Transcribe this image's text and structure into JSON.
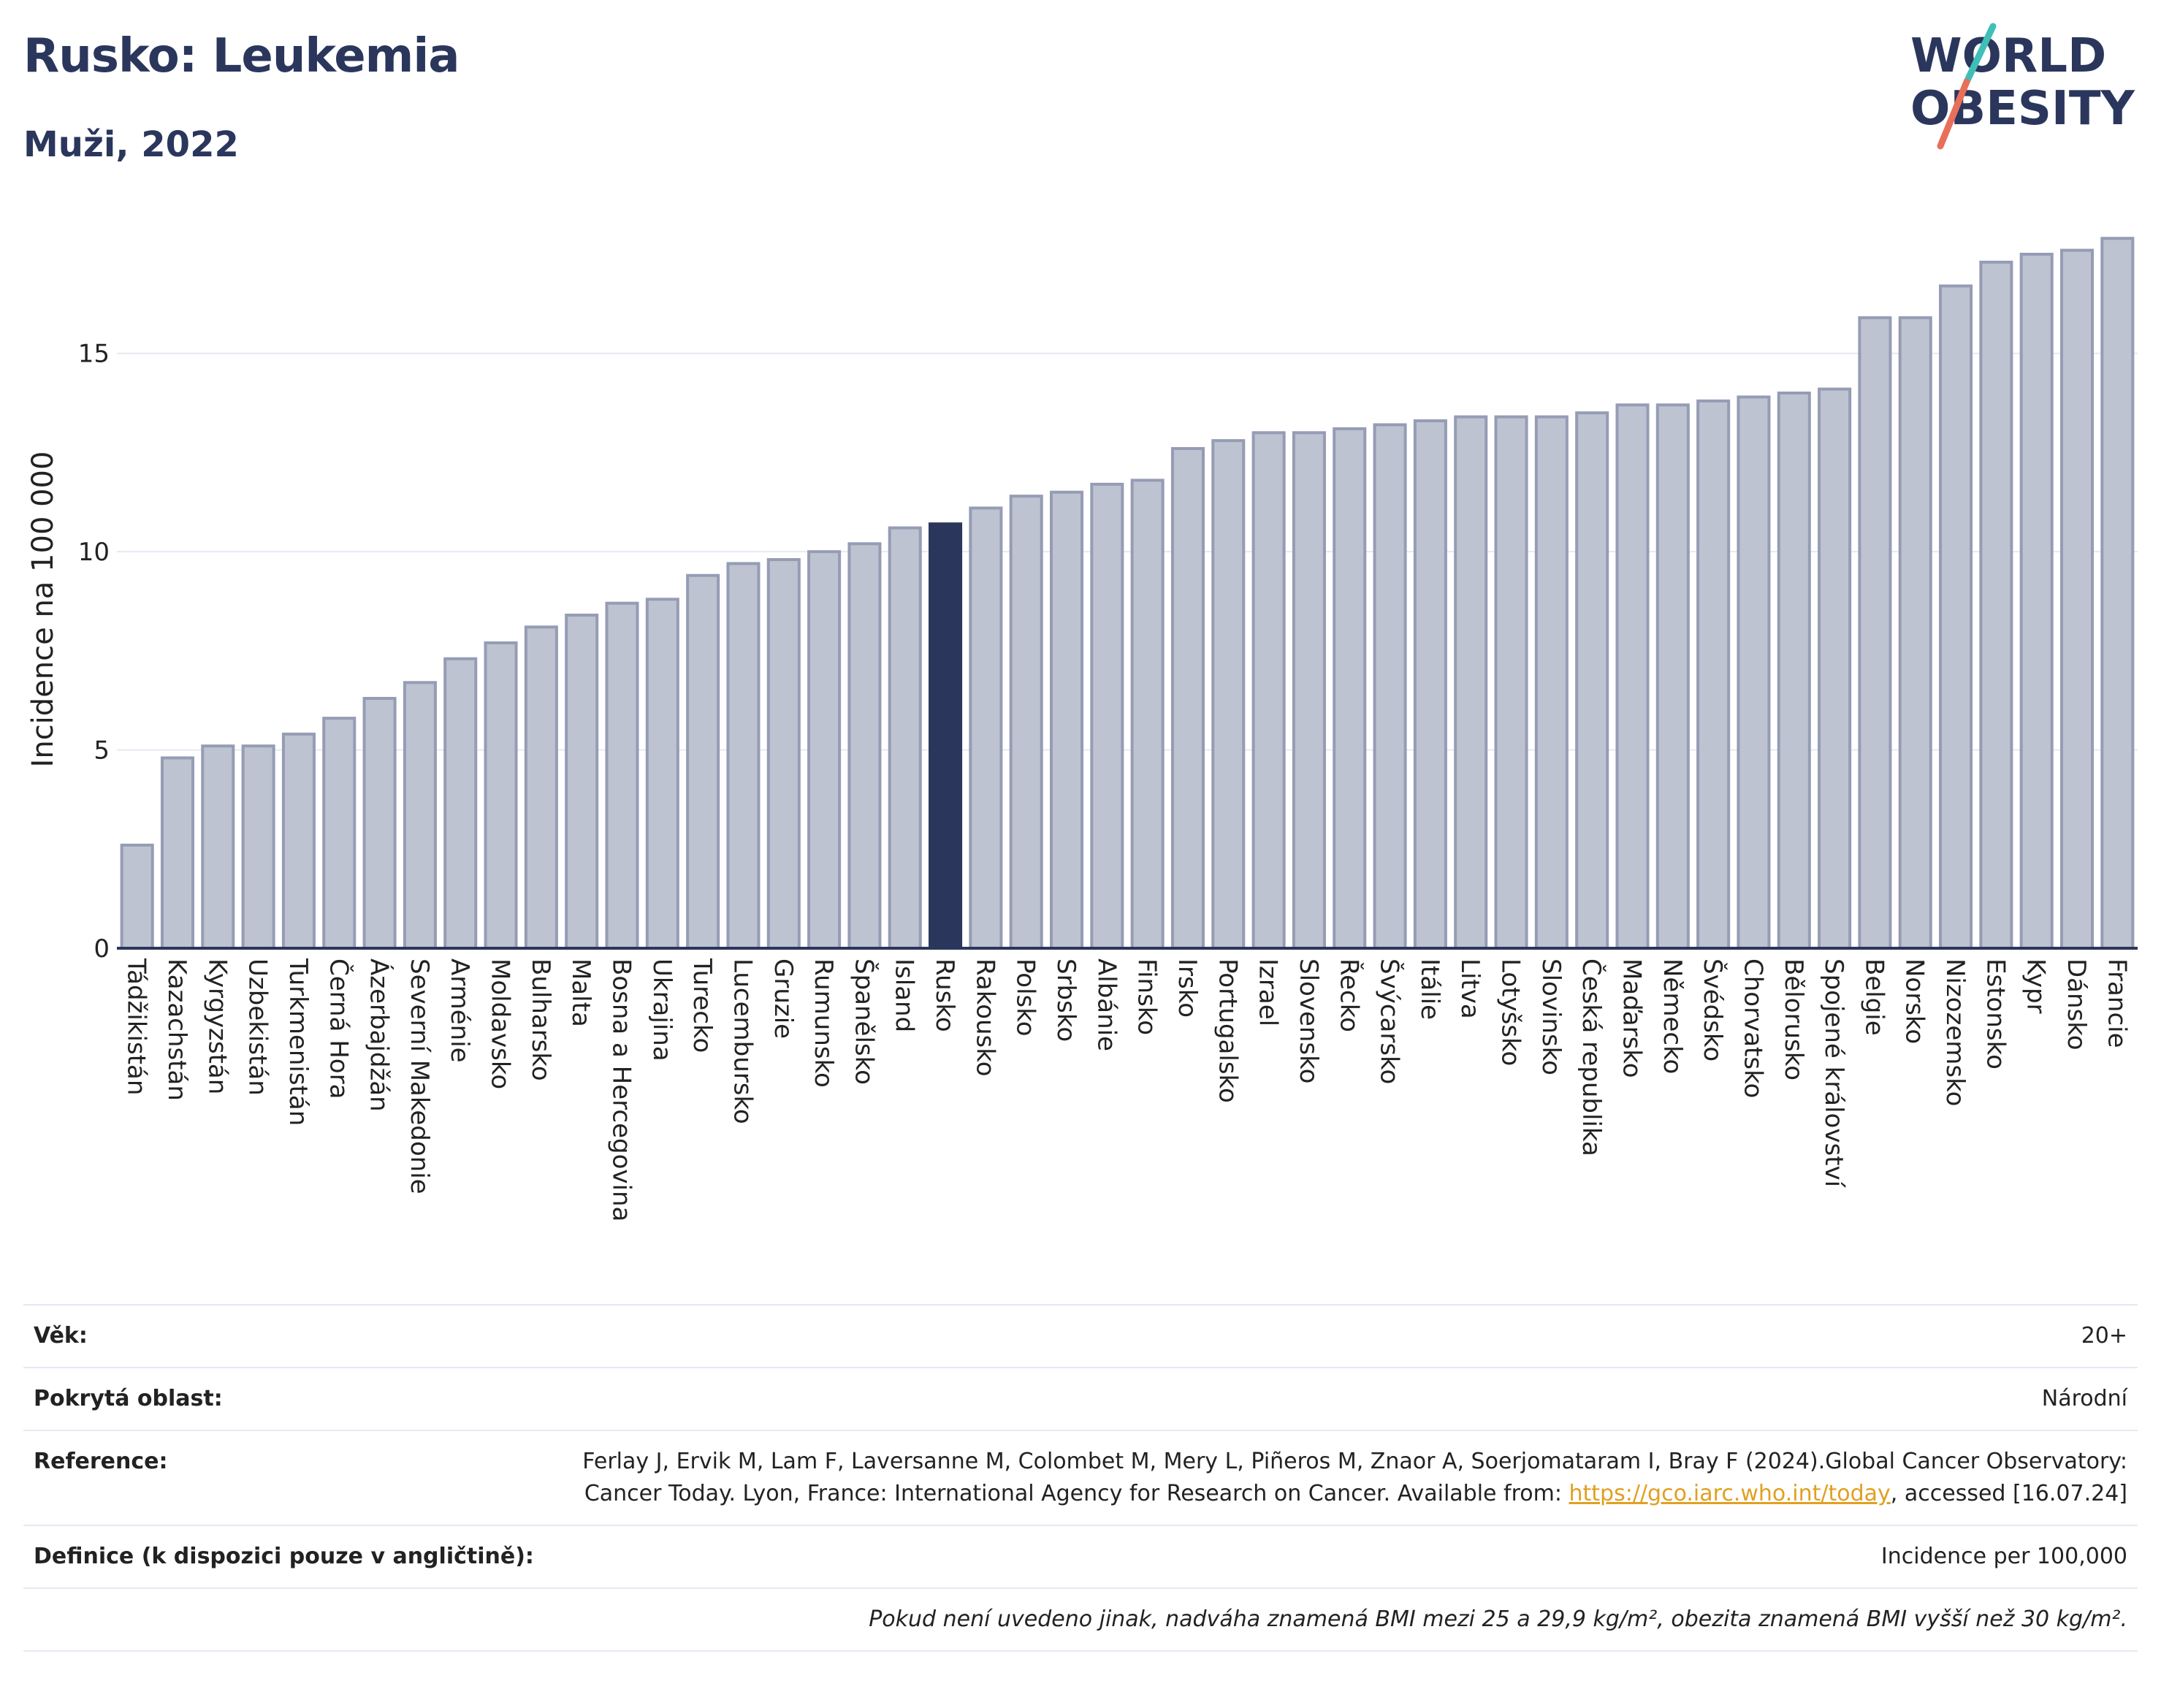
{
  "title": "Rusko: Leukemia",
  "subtitle": "Muži, 2022",
  "logo": {
    "line1": "WORLD",
    "line2": "OBESITY"
  },
  "colors": {
    "bar": "#bec3d1",
    "bar_outline": "#959cb4",
    "highlight": "#2b365c",
    "grid": "#e6e9f2",
    "title": "#2b365c",
    "logo_slash_top": "#3fbfb8",
    "logo_slash_bottom": "#e8705a"
  },
  "chart_data": {
    "type": "bar",
    "ylabel": "Incidence na 100 000",
    "xlabel": "",
    "ylim": [
      0,
      18.2
    ],
    "yticks": [
      0,
      5,
      10,
      15
    ],
    "grid": true,
    "highlight": "Rusko",
    "categories": [
      "Tádžikistán",
      "Kazachstán",
      "Kyrgyzstán",
      "Uzbekistán",
      "Turkmenistán",
      "Černá Hora",
      "Ázerbajdžán",
      "Severní Makedonie",
      "Arménie",
      "Moldavsko",
      "Bulharsko",
      "Malta",
      "Bosna a Hercegovina",
      "Ukrajina",
      "Turecko",
      "Lucembursko",
      "Gruzie",
      "Rumunsko",
      "Španělsko",
      "Island",
      "Rusko",
      "Rakousko",
      "Polsko",
      "Srbsko",
      "Albánie",
      "Finsko",
      "Irsko",
      "Portugalsko",
      "Izrael",
      "Slovensko",
      "Řecko",
      "Švýcarsko",
      "Itálie",
      "Litva",
      "Lotyšsko",
      "Slovinsko",
      "Česká republika",
      "Maďarsko",
      "Německo",
      "Švédsko",
      "Chorvatsko",
      "Bělorusko",
      "Spojené království",
      "Belgie",
      "Norsko",
      "Nizozemsko",
      "Estonsko",
      "Kypr",
      "Dánsko",
      "Francie"
    ],
    "values": [
      2.6,
      4.8,
      5.1,
      5.1,
      5.4,
      5.8,
      6.3,
      6.7,
      7.3,
      7.7,
      8.1,
      8.4,
      8.7,
      8.8,
      9.4,
      9.7,
      9.8,
      10.0,
      10.2,
      10.6,
      10.7,
      11.1,
      11.4,
      11.5,
      11.7,
      11.8,
      12.6,
      12.8,
      13.0,
      13.0,
      13.1,
      13.2,
      13.3,
      13.4,
      13.4,
      13.4,
      13.5,
      13.7,
      13.7,
      13.8,
      13.9,
      14.0,
      14.1,
      15.9,
      15.9,
      16.7,
      17.3,
      17.5,
      17.6,
      17.9
    ]
  },
  "info": {
    "age_label": "Věk:",
    "age_value": "20+",
    "coverage_label": "Pokrytá oblast:",
    "coverage_value": "Národní",
    "reference_label": "Reference:",
    "reference_text_1": "Ferlay J, Ervik M, Lam F, Laversanne M, Colombet M, Mery L, Piñeros M, Znaor A, Soerjomataram I, Bray F (2024).Global Cancer Observatory: Cancer Today. Lyon, France: International Agency for Research on Cancer. Available from: ",
    "reference_link": "https://gco.iarc.who.int/today",
    "reference_text_2": ", accessed [16.07.24]",
    "definition_label": "Definice (k dispozici pouze v angličtině):",
    "definition_value": "Incidence per 100,000",
    "note": "Pokud není uvedeno jinak, nadváha znamená BMI mezi 25 a 29,9 kg/m², obezita znamená BMI vyšší než 30 kg/m²."
  }
}
